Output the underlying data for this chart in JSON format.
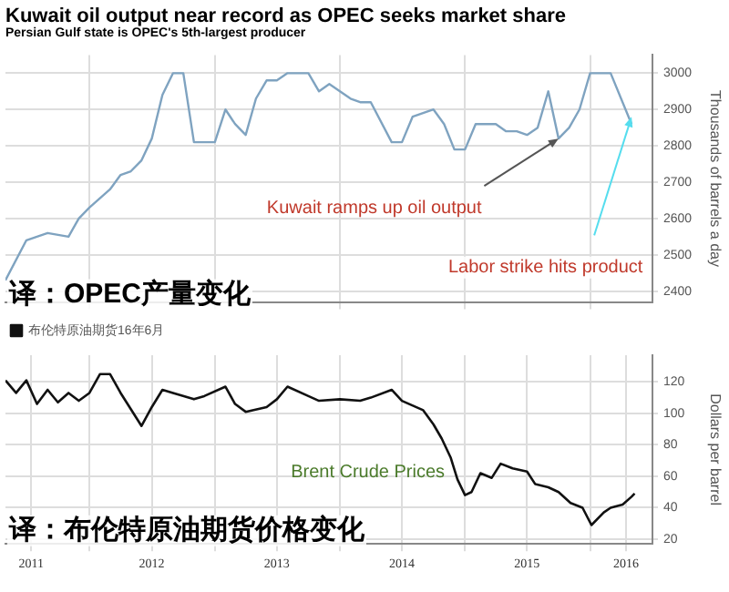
{
  "chart_data": [
    {
      "type": "line",
      "title": "Kuwait oil output near record as OPEC seeks market share",
      "subtitle": "Persian Gulf state is OPEC's 5th-largest producer",
      "ylabel": "Thousands of barrels a day",
      "x": [
        "2011-05",
        "2011-07",
        "2011-09",
        "2011-11",
        "2011-12",
        "2012-01",
        "2012-03",
        "2012-04",
        "2012-05",
        "2012-06",
        "2012-07",
        "2012-08",
        "2012-09",
        "2012-10",
        "2012-11",
        "2013-01",
        "2013-02",
        "2013-03",
        "2013-04",
        "2013-05",
        "2013-06",
        "2013-07",
        "2013-08",
        "2013-10",
        "2013-11",
        "2013-12",
        "2014-02",
        "2014-03",
        "2014-04",
        "2014-06",
        "2014-07",
        "2014-08",
        "2014-10",
        "2014-11",
        "2014-12",
        "2015-01",
        "2015-02",
        "2015-04",
        "2015-05",
        "2015-06",
        "2015-07",
        "2015-08",
        "2015-09",
        "2015-10",
        "2015-11",
        "2015-12",
        "2016-01",
        "2016-03",
        "2016-05"
      ],
      "series": [
        {
          "color": "#7fa3c0",
          "values": [
            2430,
            2540,
            2560,
            2550,
            2600,
            2630,
            2680,
            2720,
            2730,
            2760,
            2820,
            2940,
            3000,
            3000,
            2810,
            2810,
            2900,
            2860,
            2830,
            2930,
            2980,
            2980,
            3000,
            3000,
            2950,
            2970,
            2930,
            2920,
            2920,
            2810,
            2810,
            2880,
            2900,
            2860,
            2790,
            2790,
            2860,
            2860,
            2840,
            2840,
            2830,
            2850,
            2950,
            2820,
            2850,
            2900,
            3000,
            3000,
            2860
          ]
        }
      ],
      "xlim": [
        "2011-05",
        "2016-07"
      ],
      "xticks": [
        {
          "value": "2012-01",
          "label": null
        },
        {
          "value": "2013-01",
          "label": null
        },
        {
          "value": "2014-01",
          "label": null
        },
        {
          "value": "2015-01",
          "label": null
        },
        {
          "value": "2016-01",
          "label": null
        }
      ],
      "ylim": [
        2370,
        3050
      ],
      "yticks": [
        2400,
        2500,
        2600,
        2700,
        2800,
        2900,
        3000
      ],
      "tick_labels": "y",
      "grid": true,
      "legend": false,
      "line_style": "solid",
      "marker": "none",
      "annotations": [
        {
          "text": "Kuwait ramps up oil output",
          "x": "2015-10",
          "y": 2820
        },
        {
          "text": "Labor strike hits product",
          "x": "2016-05",
          "y": 2880
        },
        "译：OPEC产量变化"
      ]
    },
    {
      "type": "line",
      "ylabel": "Dollars per barrel",
      "x": [
        "2011-05",
        "2011-06",
        "2011-07",
        "2011-08",
        "2011-09",
        "2011-10",
        "2011-11",
        "2011-12",
        "2012-01",
        "2012-02",
        "2012-03",
        "2012-04",
        "2012-06",
        "2012-07",
        "2012-08",
        "2012-09",
        "2012-11",
        "2012-12",
        "2013-02",
        "2013-03",
        "2013-04",
        "2013-06",
        "2013-07",
        "2013-08",
        "2013-10",
        "2013-11",
        "2014-01",
        "2014-03",
        "2014-04",
        "2014-06",
        "2014-07",
        "2014-09-01",
        "2014-10-01",
        "2014-10-25",
        "2014-11-20",
        "2014-12-10",
        "2015-01-01",
        "2015-01-20",
        "2015-02-15",
        "2015-03-20",
        "2015-04-15",
        "2015-05-20",
        "2015-07-01",
        "2015-07-25",
        "2015-09-01",
        "2015-10-01",
        "2015-11-05",
        "2015-12-10",
        "2016-01-05",
        "2016-02-10",
        "2016-03-01",
        "2016-04-05",
        "2016-05-01",
        "2016-05-10"
      ],
      "series": [
        {
          "name": "布伦特原油期货16年6月",
          "color": "#111111",
          "values": [
            121,
            113,
            121,
            106,
            115,
            107,
            113,
            108,
            113,
            125,
            125,
            113,
            92,
            104,
            115,
            113,
            109,
            111,
            117,
            106,
            101,
            104,
            109,
            117,
            111,
            108,
            109,
            108,
            110,
            115,
            108,
            102,
            93,
            84,
            72,
            58,
            48,
            50,
            62,
            59,
            68,
            65,
            63,
            55,
            53,
            50,
            43,
            40,
            29,
            37,
            40,
            42,
            47,
            49
          ]
        }
      ],
      "xlim": [
        "2011-05",
        "2016-07"
      ],
      "xticks": [
        {
          "value": "2011-07-15",
          "label": "2011"
        },
        {
          "value": "2012-01",
          "label": null
        },
        {
          "value": "2012-07-01",
          "label": "2012"
        },
        {
          "value": "2013-01",
          "label": null
        },
        {
          "value": "2013-07-01",
          "label": "2013"
        },
        {
          "value": "2014-01",
          "label": null
        },
        {
          "value": "2014-07-01",
          "label": "2014"
        },
        {
          "value": "2015-01",
          "label": null
        },
        {
          "value": "2015-07-01",
          "label": "2015"
        },
        {
          "value": "2016-01",
          "label": null
        },
        {
          "value": "2016-04-15",
          "label": "2016"
        }
      ],
      "ylim": [
        17,
        137
      ],
      "yticks": [
        20,
        40,
        60,
        80,
        100,
        120
      ],
      "grid": true,
      "legend": "top left",
      "line_style": "solid",
      "marker": "none",
      "annotations": [
        "Brent Crude Prices",
        "译：布伦特原油期货价格变化"
      ]
    }
  ]
}
